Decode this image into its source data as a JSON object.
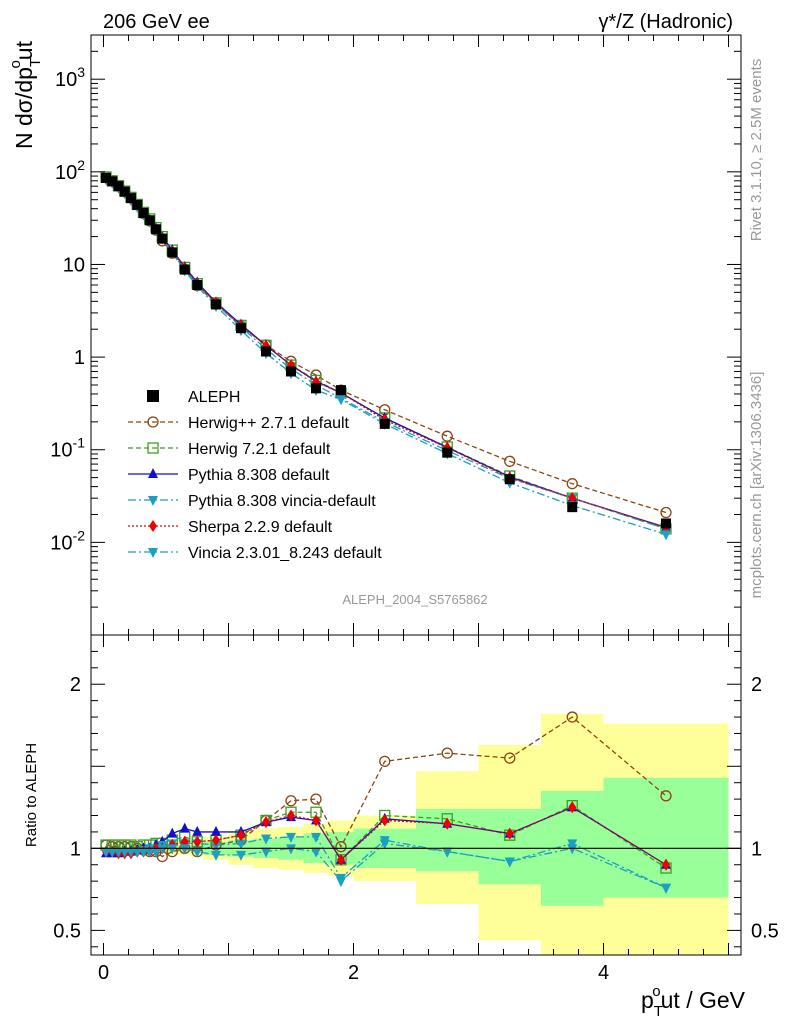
{
  "header": {
    "left": "206 GeV ee",
    "right": "γ*/Z (Hadronic)"
  },
  "side_labels": {
    "rivet": "Rivet 3.1.10, ≥ 2.5M events",
    "mcplots": "mcplots.cern.ch [arXiv:1306.3436]"
  },
  "analysis_tag": "ALEPH_2004_S5765862",
  "colors": {
    "data": "#000000",
    "herwigpp": "#8b4513",
    "herwig7": "#3c9e24",
    "pythia": "#1010cc",
    "pythia_vincia": "#1aa0c0",
    "sherpa": "#ee0000",
    "vincia": "#1aa0c0",
    "band_syst": "#ffff99",
    "band_stat": "#99ff99"
  },
  "chart_data": [
    {
      "type": "line",
      "panel": "main",
      "ylabel": "N dσ/dp_T^o ut",
      "yscale": "log",
      "ylim": [
        0.001,
        3000
      ],
      "xlim": [
        -0.1,
        5.1
      ],
      "y_ticks": [
        {
          "v": 0.01,
          "label": "10^-2"
        },
        {
          "v": 0.1,
          "label": "10^-1"
        },
        {
          "v": 1,
          "label": "1"
        },
        {
          "v": 10,
          "label": "10"
        },
        {
          "v": 100,
          "label": "10^2"
        },
        {
          "v": 1000,
          "label": "10^3"
        }
      ],
      "x": [
        0.02,
        0.07,
        0.12,
        0.17,
        0.22,
        0.27,
        0.32,
        0.37,
        0.42,
        0.47,
        0.55,
        0.65,
        0.75,
        0.9,
        1.1,
        1.3,
        1.5,
        1.7,
        1.9,
        2.25,
        2.75,
        3.25,
        3.75,
        4.5
      ],
      "data": {
        "name": "ALEPH",
        "values": [
          86,
          79,
          70,
          61,
          52,
          44,
          36,
          30,
          24,
          19,
          13.5,
          8.8,
          6.0,
          3.7,
          2.05,
          1.15,
          0.7,
          0.46,
          0.44,
          0.19,
          0.093,
          0.048,
          0.024,
          0.016
        ]
      },
      "series": [
        {
          "name": "Herwig++ 2.7.1 default",
          "style": "herwigpp",
          "values": [
            88,
            80,
            71,
            62,
            53,
            44,
            35.5,
            29.5,
            23.5,
            18.0,
            13.2,
            8.9,
            5.9,
            3.8,
            2.15,
            1.35,
            0.9,
            0.64,
            0.44,
            0.27,
            0.14,
            0.075,
            0.043,
            0.021
          ]
        },
        {
          "name": "Herwig 7.2.1 default",
          "style": "herwig7",
          "values": [
            88,
            80,
            71,
            62,
            53,
            44.5,
            36.5,
            31,
            25,
            20,
            14.3,
            9.3,
            6.2,
            3.85,
            2.2,
            1.34,
            0.82,
            0.56,
            0.41,
            0.22,
            0.107,
            0.052,
            0.03,
            0.014
          ]
        },
        {
          "name": "Pythia 8.308 default",
          "style": "pythia",
          "values": [
            84,
            77,
            68,
            60,
            51,
            43,
            35,
            30,
            24.5,
            19.8,
            14.3,
            9.4,
            6.4,
            3.9,
            2.25,
            1.34,
            0.82,
            0.55,
            0.41,
            0.22,
            0.106,
            0.051,
            0.03,
            0.0145
          ]
        },
        {
          "name": "Pythia 8.308 vincia-default",
          "style": "pythia_vincia",
          "values": [
            84,
            77,
            68,
            60,
            51,
            43,
            35,
            30,
            24,
            19.5,
            13.8,
            9.0,
            6.1,
            3.75,
            2.12,
            1.22,
            0.75,
            0.5,
            0.36,
            0.2,
            0.098,
            0.049,
            0.03,
            0.014
          ]
        },
        {
          "name": "Sherpa 2.2.9 default",
          "style": "sherpa",
          "values": [
            84,
            77,
            68,
            59,
            50,
            43,
            35,
            29.5,
            24,
            19.3,
            13.8,
            9.2,
            6.2,
            3.85,
            2.18,
            1.33,
            0.82,
            0.54,
            0.41,
            0.21,
            0.105,
            0.05,
            0.03,
            0.0145
          ]
        },
        {
          "name": "Vincia 2.3.01_8.243 default",
          "style": "vincia",
          "values": [
            84,
            77,
            68,
            59,
            50,
            42,
            34.5,
            29,
            23.5,
            19.0,
            13.3,
            8.6,
            5.8,
            3.55,
            1.95,
            1.1,
            0.67,
            0.44,
            0.35,
            0.19,
            0.091,
            0.044,
            0.025,
            0.0122
          ]
        }
      ]
    },
    {
      "type": "line",
      "panel": "ratio",
      "ylabel": "Ratio to ALEPH",
      "xlabel": "p_T^o ut / GeV",
      "ylim": [
        0.35,
        2.3
      ],
      "xlim": [
        -0.1,
        5.1
      ],
      "y_ticks": [
        {
          "v": 0.5,
          "label": "0.5"
        },
        {
          "v": 1,
          "label": "1"
        },
        {
          "v": 2,
          "label": "2"
        }
      ],
      "x_ticks": [
        {
          "v": 0,
          "label": "0"
        },
        {
          "v": 2,
          "label": "2"
        },
        {
          "v": 4,
          "label": "4"
        }
      ],
      "x": [
        0.02,
        0.07,
        0.12,
        0.17,
        0.22,
        0.27,
        0.32,
        0.37,
        0.42,
        0.47,
        0.55,
        0.65,
        0.75,
        0.9,
        1.1,
        1.3,
        1.5,
        1.7,
        1.9,
        2.25,
        2.75,
        3.25,
        3.75,
        4.5
      ],
      "bands": {
        "edges": [
          0,
          0.05,
          0.1,
          0.15,
          0.2,
          0.25,
          0.3,
          0.35,
          0.4,
          0.45,
          0.5,
          0.6,
          0.7,
          0.8,
          1.0,
          1.2,
          1.4,
          1.6,
          1.8,
          2.0,
          2.5,
          3.0,
          3.5,
          4.0,
          5.0
        ],
        "syst_lo": [
          0.99,
          0.99,
          0.99,
          0.99,
          0.98,
          0.98,
          0.98,
          0.98,
          0.97,
          0.97,
          0.96,
          0.96,
          0.95,
          0.93,
          0.9,
          0.88,
          0.87,
          0.85,
          0.83,
          0.8,
          0.66,
          0.44,
          0.35,
          0.35
        ],
        "syst_hi": [
          1.01,
          1.01,
          1.01,
          1.01,
          1.02,
          1.02,
          1.02,
          1.02,
          1.03,
          1.03,
          1.04,
          1.04,
          1.05,
          1.07,
          1.1,
          1.12,
          1.13,
          1.15,
          1.17,
          1.2,
          1.47,
          1.63,
          1.82,
          1.76
        ],
        "stat_lo": [
          0.995,
          0.995,
          0.995,
          0.995,
          0.99,
          0.99,
          0.99,
          0.99,
          0.99,
          0.98,
          0.98,
          0.98,
          0.97,
          0.96,
          0.95,
          0.94,
          0.93,
          0.91,
          0.9,
          0.88,
          0.86,
          0.78,
          0.65,
          0.7
        ],
        "stat_hi": [
          1.005,
          1.005,
          1.005,
          1.005,
          1.01,
          1.01,
          1.01,
          1.01,
          1.01,
          1.02,
          1.02,
          1.02,
          1.03,
          1.04,
          1.05,
          1.06,
          1.07,
          1.09,
          1.1,
          1.12,
          1.24,
          1.24,
          1.35,
          1.43
        ]
      },
      "series": [
        {
          "name": "Herwig++ 2.7.1 default",
          "style": "herwigpp",
          "values": [
            1.02,
            1.01,
            1.01,
            1.01,
            1.01,
            1.0,
            0.99,
            0.98,
            0.98,
            0.95,
            0.98,
            1.0,
            0.98,
            1.02,
            1.05,
            1.17,
            1.29,
            1.3,
            1.01,
            1.53,
            1.58,
            1.55,
            1.8,
            1.32
          ]
        },
        {
          "name": "Herwig 7.2.1 default",
          "style": "herwig7",
          "values": [
            1.02,
            1.02,
            1.02,
            1.02,
            1.02,
            1.01,
            1.02,
            1.02,
            1.03,
            1.03,
            1.05,
            1.07,
            1.04,
            1.05,
            1.08,
            1.17,
            1.22,
            1.22,
            0.93,
            1.2,
            1.18,
            1.08,
            1.26,
            0.88
          ]
        },
        {
          "name": "Pythia 8.308 default",
          "style": "pythia",
          "values": [
            0.97,
            0.97,
            0.97,
            0.98,
            0.98,
            0.99,
            1.0,
            1.0,
            1.02,
            1.04,
            1.09,
            1.12,
            1.1,
            1.1,
            1.1,
            1.16,
            1.19,
            1.17,
            0.93,
            1.18,
            1.15,
            1.09,
            1.25,
            0.9
          ]
        },
        {
          "name": "Pythia 8.308 vincia-default",
          "style": "pythia_vincia",
          "values": [
            0.98,
            0.98,
            0.98,
            0.98,
            0.98,
            0.98,
            0.99,
            1.0,
            1.0,
            1.02,
            1.03,
            1.03,
            1.03,
            1.02,
            1.03,
            1.06,
            1.07,
            1.07,
            0.82,
            1.05,
            0.98,
            0.92,
            1.0,
            0.76
          ]
        },
        {
          "name": "Sherpa 2.2.9 default",
          "style": "sherpa",
          "values": [
            0.98,
            0.98,
            0.97,
            0.97,
            0.97,
            0.98,
            0.98,
            0.98,
            1.0,
            1.0,
            1.02,
            1.04,
            1.04,
            1.05,
            1.08,
            1.16,
            1.2,
            1.17,
            0.93,
            1.17,
            1.15,
            1.09,
            1.25,
            0.9
          ]
        },
        {
          "name": "Vincia 2.3.01_8.243 default",
          "style": "vincia",
          "values": [
            0.98,
            0.98,
            0.98,
            0.98,
            0.98,
            0.98,
            0.98,
            0.98,
            0.98,
            1.0,
            1.0,
            1.0,
            0.98,
            0.96,
            0.96,
            0.98,
            1.0,
            0.98,
            0.8,
            1.03,
            0.98,
            0.92,
            1.03,
            0.76
          ]
        }
      ]
    }
  ]
}
